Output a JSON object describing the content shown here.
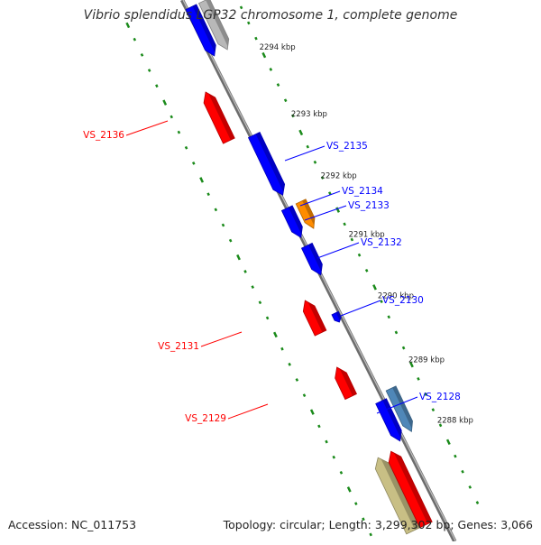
{
  "title": "Vibrio splendidus LGP32 chromosome 1, complete genome",
  "footer": {
    "accession": "Accession: NC_011753",
    "summary": "Topology: circular; Length: 3,299,302 bp; Genes: 3,066"
  },
  "colors": {
    "backbone": "#888888",
    "tick_dots": "#1a8a1a",
    "forward_gene": "#0000ff",
    "reverse_gene": "#ff0000",
    "orange_gene": "#ff8c00",
    "grey_gene": "#b8b8b8",
    "steelblue_gene": "#4f87b8",
    "olive_gene": "#c8bf85"
  },
  "scale_labels": [
    "2294 kbp",
    "2293 kbp",
    "2292 kbp",
    "2291 kbp",
    "2290 kbp",
    "2289 kbp",
    "2288 kbp"
  ],
  "gene_labels": {
    "forward": [
      "VS_2135",
      "VS_2134",
      "VS_2133",
      "VS_2132",
      "VS_2130",
      "VS_2128"
    ],
    "reverse": [
      "VS_2136",
      "VS_2131",
      "VS_2129"
    ]
  }
}
